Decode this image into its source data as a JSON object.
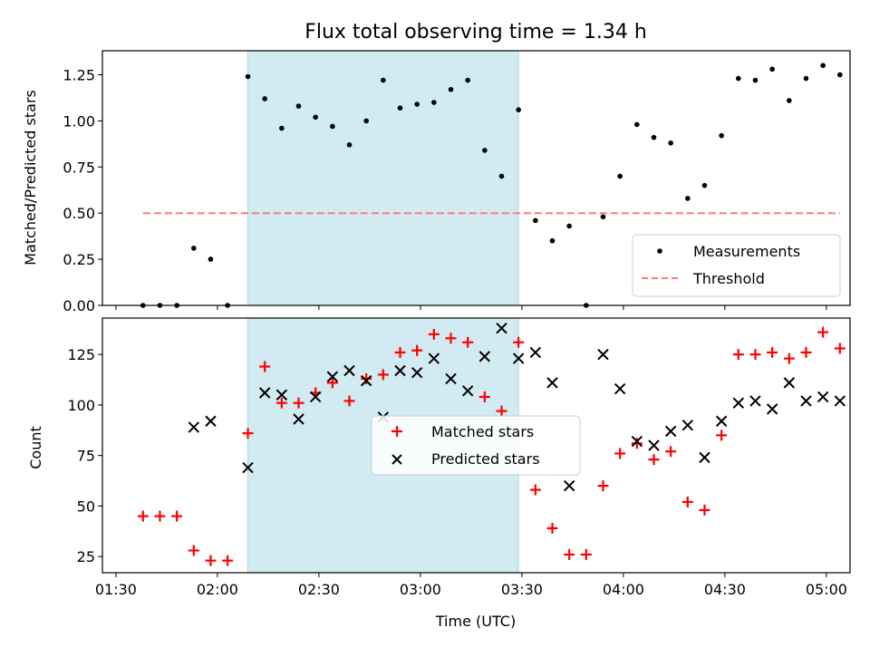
{
  "chart_data": [
    {
      "type": "scatter",
      "title": "Flux total observing time = 1.34 h",
      "ylabel": "Matched/Predicted stars",
      "xlabel": "",
      "xlim": [
        "01:26",
        "05:07"
      ],
      "ylim": [
        0,
        1.38
      ],
      "yticks": [
        "0.00",
        "0.25",
        "0.50",
        "0.75",
        "1.00",
        "1.25"
      ],
      "shaded_region": {
        "x0": "02:09",
        "x1": "03:29",
        "color": "#add8e6"
      },
      "legend": {
        "position": "lower right",
        "entries": [
          "Measurements",
          "Threshold"
        ]
      },
      "series": [
        {
          "name": "Measurements",
          "color": "#000000",
          "x": [
            "01:38",
            "01:43",
            "01:48",
            "01:53",
            "01:58",
            "02:03",
            "02:09",
            "02:14",
            "02:19",
            "02:24",
            "02:29",
            "02:34",
            "02:39",
            "02:44",
            "02:49",
            "02:54",
            "02:59",
            "03:04",
            "03:09",
            "03:14",
            "03:19",
            "03:24",
            "03:29",
            "03:34",
            "03:39",
            "03:44",
            "03:49",
            "03:54",
            "03:59",
            "04:04",
            "04:09",
            "04:14",
            "04:19",
            "04:24",
            "04:29",
            "04:34",
            "04:39",
            "04:44",
            "04:49",
            "04:54",
            "04:59",
            "05:04"
          ],
          "y": [
            0.0,
            0.0,
            0.0,
            0.31,
            0.25,
            0.0,
            1.24,
            1.12,
            0.96,
            1.08,
            1.02,
            0.97,
            0.87,
            1.0,
            1.22,
            1.07,
            1.09,
            1.1,
            1.17,
            1.22,
            0.84,
            0.7,
            1.06,
            0.46,
            0.35,
            0.43,
            0.0,
            0.48,
            0.7,
            0.98,
            0.91,
            0.88,
            0.58,
            0.65,
            0.92,
            1.23,
            1.22,
            1.28,
            1.11,
            1.23,
            1.3,
            1.25
          ]
        },
        {
          "name": "Threshold",
          "color": "#ff7b7b",
          "x": [
            "01:38",
            "05:04"
          ],
          "y": [
            0.5,
            0.5
          ]
        }
      ]
    },
    {
      "type": "scatter",
      "title": "",
      "ylabel": "Count",
      "xlabel": "Time (UTC)",
      "xlim": [
        "01:26",
        "05:07"
      ],
      "ylim": [
        17,
        143
      ],
      "yticks": [
        "25",
        "50",
        "75",
        "100",
        "125"
      ],
      "xticks": [
        "01:30",
        "02:00",
        "02:30",
        "03:00",
        "03:30",
        "04:00",
        "04:30",
        "05:00"
      ],
      "shaded_region": {
        "x0": "02:09",
        "x1": "03:29",
        "color": "#add8e6"
      },
      "legend": {
        "position": "center",
        "entries": [
          "Matched stars",
          "Predicted stars"
        ]
      },
      "series": [
        {
          "name": "Matched stars",
          "color": "#ff0000",
          "marker": "+",
          "x": [
            "01:38",
            "01:43",
            "01:48",
            "01:53",
            "01:58",
            "02:03",
            "02:09",
            "02:14",
            "02:19",
            "02:24",
            "02:29",
            "02:34",
            "02:39",
            "02:44",
            "02:49",
            "02:54",
            "02:59",
            "03:04",
            "03:09",
            "03:14",
            "03:19",
            "03:24",
            "03:29",
            "03:34",
            "03:39",
            "03:44",
            "03:49",
            "03:54",
            "03:59",
            "04:04",
            "04:09",
            "04:14",
            "04:19",
            "04:24",
            "04:29",
            "04:34",
            "04:39",
            "04:44",
            "04:49",
            "04:54",
            "04:59",
            "05:04"
          ],
          "y": [
            45,
            45,
            45,
            28,
            23,
            23,
            86,
            119,
            101,
            101,
            106,
            111,
            102,
            113,
            115,
            126,
            127,
            135,
            133,
            131,
            104,
            97,
            131,
            58,
            39,
            26,
            26,
            60,
            76,
            81,
            73,
            77,
            52,
            48,
            85,
            125,
            125,
            126,
            123,
            126,
            136,
            128
          ]
        },
        {
          "name": "Predicted stars",
          "color": "#000000",
          "marker": "x",
          "x": [
            "01:53",
            "01:58",
            "02:09",
            "02:14",
            "02:19",
            "02:24",
            "02:29",
            "02:34",
            "02:39",
            "02:44",
            "02:49",
            "02:54",
            "02:59",
            "03:04",
            "03:09",
            "03:14",
            "03:19",
            "03:24",
            "03:29",
            "03:34",
            "03:39",
            "03:44",
            "03:54",
            "03:59",
            "04:04",
            "04:09",
            "04:14",
            "04:19",
            "04:24",
            "04:29",
            "04:34",
            "04:39",
            "04:44",
            "04:49",
            "04:54",
            "04:59",
            "05:04"
          ],
          "y": [
            89,
            92,
            69,
            106,
            105,
            93,
            104,
            114,
            117,
            112,
            94,
            117,
            116,
            123,
            113,
            107,
            124,
            138,
            123,
            126,
            111,
            60,
            125,
            108,
            82,
            80,
            87,
            90,
            74,
            92,
            101,
            102,
            98,
            111,
            102,
            104,
            102
          ]
        }
      ]
    }
  ]
}
